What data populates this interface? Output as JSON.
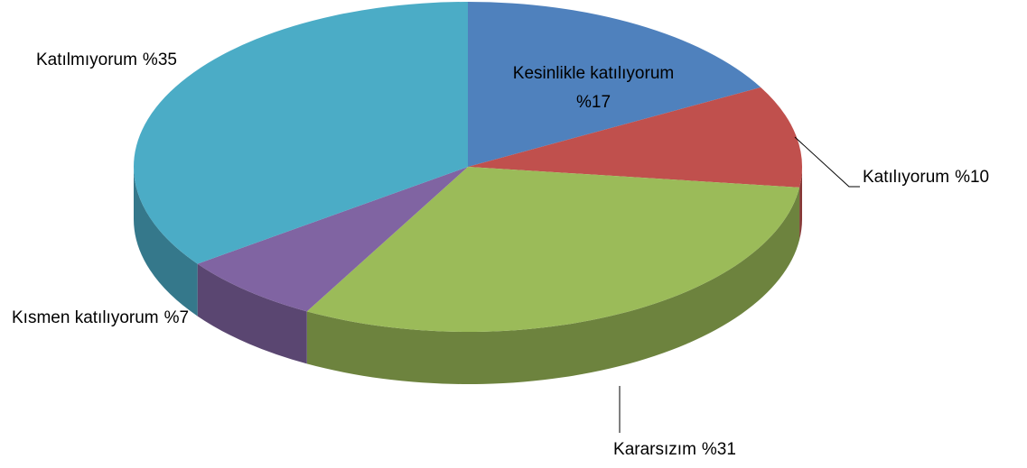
{
  "chart_data": {
    "type": "pie",
    "categories": [
      "Kesinlikle katılıyorum",
      "Katılıyorum",
      "Kararsızım",
      "Kısmen katılıyorum",
      "Katılmıyorum"
    ],
    "values": [
      17,
      10,
      31,
      7,
      35
    ],
    "value_labels": [
      "%17",
      "%10",
      "%31",
      "%7",
      "%35"
    ],
    "colors": [
      "#4f81bd",
      "#c0504d",
      "#9bbb59",
      "#8064a2",
      "#4bacc6"
    ],
    "three_d": true
  }
}
